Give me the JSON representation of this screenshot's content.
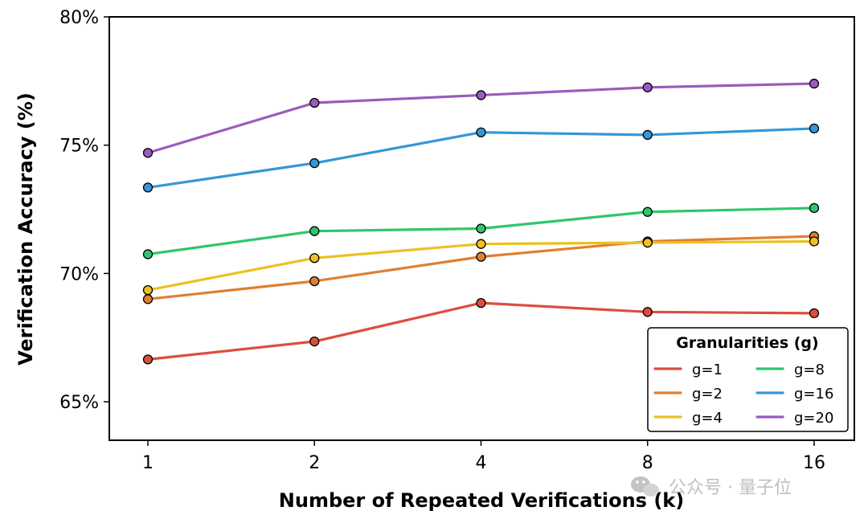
{
  "chart_data": {
    "type": "line",
    "xlabel": "Number of Repeated Verifications (k)",
    "ylabel": "Verification Accuracy (%)",
    "x_categories": [
      "1",
      "2",
      "4",
      "8",
      "16"
    ],
    "y_ticks": [
      65,
      70,
      75,
      80
    ],
    "y_tick_labels": [
      "65%",
      "70%",
      "75%",
      "80%"
    ],
    "ylim": [
      63.5,
      80
    ],
    "grid": false,
    "legend": {
      "title": "Granularities (g)",
      "placement": "lower-right",
      "columns": 2
    },
    "series": [
      {
        "name": "g=1",
        "color": "#dc4e3f",
        "values": [
          66.65,
          67.35,
          68.85,
          68.5,
          68.45
        ]
      },
      {
        "name": "g=2",
        "color": "#e07f2f",
        "values": [
          69.0,
          69.7,
          70.65,
          71.25,
          71.45
        ]
      },
      {
        "name": "g=4",
        "color": "#ebc123",
        "values": [
          69.35,
          70.6,
          71.15,
          71.2,
          71.25
        ]
      },
      {
        "name": "g=8",
        "color": "#2ec66b",
        "values": [
          70.75,
          71.65,
          71.75,
          72.4,
          72.55
        ]
      },
      {
        "name": "g=16",
        "color": "#3497d6",
        "values": [
          73.35,
          74.3,
          75.5,
          75.4,
          75.65
        ]
      },
      {
        "name": "g=20",
        "color": "#9a5cbb",
        "values": [
          74.7,
          76.65,
          76.95,
          77.25,
          77.4
        ]
      }
    ]
  },
  "watermark": {
    "text": "公众号 · 量子位",
    "icon": "wechat-icon"
  }
}
